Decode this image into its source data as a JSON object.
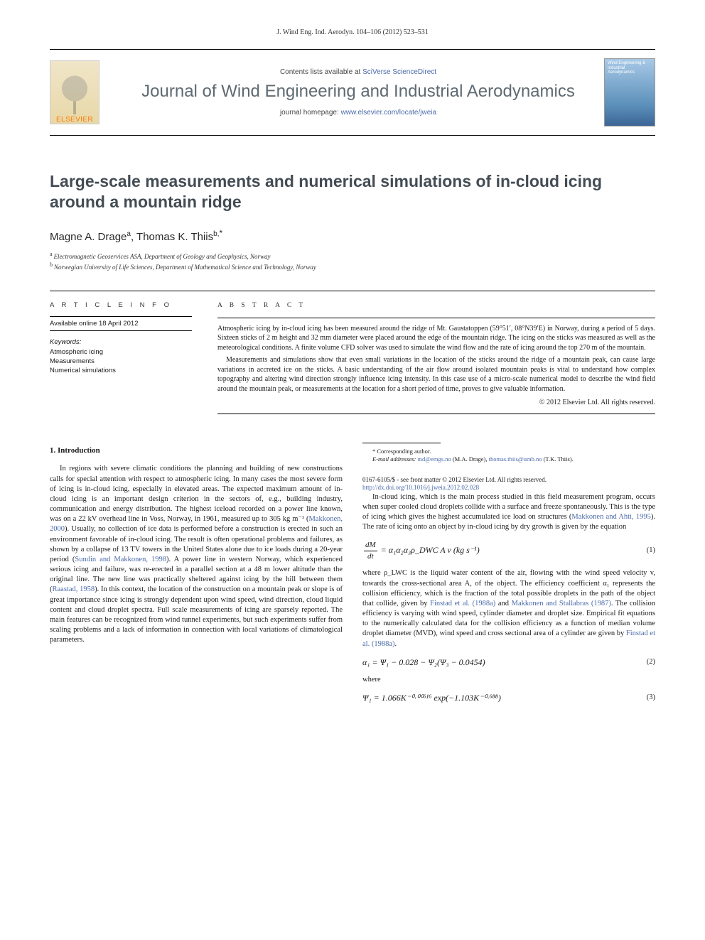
{
  "page_header": "J. Wind Eng. Ind. Aerodyn. 104–106 (2012) 523–531",
  "masthead": {
    "contents_prefix": "Contents lists available at ",
    "contents_link": "SciVerse ScienceDirect",
    "journal_name": "Journal of Wind Engineering and Industrial Aerodynamics",
    "homepage_prefix": "journal homepage: ",
    "homepage_link": "www.elsevier.com/locate/jweia",
    "publisher_label": "ELSEVIER",
    "cover_text": "Wind Engineering & Industrial Aerodynamics"
  },
  "article": {
    "title": "Large-scale measurements and numerical simulations of in-cloud icing around a mountain ridge",
    "authors_html": "Magne A. Drage",
    "author1": "Magne A. Drage",
    "sup1": "a",
    "sep": ", ",
    "author2": "Thomas K. Thiis",
    "sup2": "b,",
    "corr": "*",
    "affiliations": {
      "a_sup": "a",
      "a_text": "Electromagnetic Geoservices ASA, Department of Geology and Geophysics, Norway",
      "b_sup": "b",
      "b_text": "Norwegian University of Life Sciences, Department of Mathematical Science and Technology, Norway"
    }
  },
  "info": {
    "heading": "A R T I C L E  I N F O",
    "available": "Available online 18 April 2012",
    "kw_heading": "Keywords:",
    "keywords": [
      "Atmospheric icing",
      "Measurements",
      "Numerical simulations"
    ]
  },
  "abstract": {
    "heading": "A B S T R A C T",
    "p1": "Atmospheric icing by in-cloud icing has been measured around the ridge of Mt. Gaustatoppen (59°51′, 08°N39′E) in Norway, during a period of 5 days. Sixteen sticks of 2 m height and 32 mm diameter were placed around the edge of the mountain ridge. The icing on the sticks was measured as well as the meteorological conditions. A finite volume CFD solver was used to simulate the wind flow and the rate of icing around the top 270 m of the mountain.",
    "p2": "Measurements and simulations show that even small variations in the location of the sticks around the ridge of a mountain peak, can cause large variations in accreted ice on the sticks. A basic understanding of the air flow around isolated mountain peaks is vital to understand how complex topography and altering wind direction strongly influence icing intensity. In this case use of a micro-scale numerical model to describe the wind field around the mountain peak, or measurements at the location for a short period of time, proves to give valuable information.",
    "copyright": "© 2012 Elsevier Ltd. All rights reserved."
  },
  "body": {
    "section_heading": "1.   Introduction",
    "intro_before_ref1": "In regions with severe climatic conditions the planning and building of new constructions calls for special attention with respect to atmospheric icing. In many cases the most severe form of icing is in-cloud icing, especially in elevated areas. The expected maximum amount of in-cloud icing is an important design criterion in the sectors of, e.g., building industry, communication and energy distribution. The highest iceload recorded on a power line known, was on a 22 kV overhead line in Voss, Norway, in 1961, measured up to 305 kg m⁻¹ (",
    "ref1": "Makkonen, 2000",
    "intro_between_1_2": "). Usually, no collection of ice data is performed before a construction is erected in such an environment favorable of in-cloud icing. The result is often operational problems and failures, as shown by a collapse of 13 TV towers in the United States alone due to ice loads during a 20-year period (",
    "ref2": "Sundin and Makkonen, 1998",
    "intro_between_2_3": "). A power line in western Norway, which experienced serious icing and failure, was re-erected in a parallel section at a 48 m lower altitude than the original line. The new line was practically sheltered against icing by the hill between them (",
    "ref3": "Raastad, 1958",
    "intro_after_3": "). In this context, the location of the construction on a mountain peak or slope is of great importance since icing is strongly dependent upon wind speed, wind direction, cloud liquid content and cloud droplet spectra. Full scale measurements of icing are sparsely reported. The main features can be recognized ",
    "col2_p1": "from wind tunnel experiments, but such experiments suffer from scaling problems and a lack of information in connection with local variations of climatological parameters.",
    "col2_p2_before": "In-cloud icing, which is the main process studied in this field measurement program, occurs when super cooled cloud droplets collide with a surface and freeze spontaneously. This is the type of icing which gives the highest accumulated ice load on structures (",
    "ref4": "Makkonen and Ahti, 1995",
    "col2_p2_after": "). The rate of icing onto an object by in-cloud icing by dry growth is given by the equation",
    "eq1_lhs_num": "dM",
    "eq1_lhs_den": "dt",
    "eq1_rhs": " = α₁α₂α₃ρ_DWC A v   (kg s⁻¹)",
    "eq1_num": "(1)",
    "col2_p3_before": "where ρ_LWC is the liquid water content of the air, flowing with the wind speed velocity v, towards the cross-sectional area A, of the object. The efficiency coefficient α₁ represents the collision efficiency, which is the fraction of the total possible droplets in the path of the object that collide, given by ",
    "ref5": "Finstad et al. (1988a)",
    "col2_p3_and": " and ",
    "ref6": "Makkonen and Stallabras (1987)",
    "col2_p3_mid": ". The collision efficiency is varying with wind speed, cylinder diameter and droplet size. Empirical fit equations to the numerically calculated data for the collision efficiency as a function of median volume droplet diameter (MVD), wind speed and cross sectional area of a cylinder are given by ",
    "ref7": "Finstad et al. (1988a)",
    "col2_p3_end": ".",
    "eq2": "α₁ = Ψ₁ − 0.028 − Ψ₂(Ψ₃ − 0.0454)",
    "eq2_num": "(2)",
    "where_label": "where",
    "eq3": "Ψ₁ = 1.066K⁻⁰·⁰⁰⁶¹⁶ exp(−1.103K⁻⁰·⁶⁸⁸)",
    "eq3_num": "(3)"
  },
  "footnotes": {
    "corr_label": "* Corresponding author.",
    "email_label": "E-mail addresses:",
    "email1": "md@emgs.no",
    "email1_who": " (M.A. Drage), ",
    "email2": "thomas.thiis@umb.no",
    "email2_who": " (T.K. Thiis)."
  },
  "footer": {
    "line1": "0167-6105/$ - see front matter © 2012 Elsevier Ltd. All rights reserved.",
    "doi_link": "http://dx.doi.org/10.1016/j.jweia.2012.02.028"
  },
  "colors": {
    "link": "#4a6aa8",
    "journal_grey": "#5f6a72",
    "orange": "#ff7a00"
  }
}
